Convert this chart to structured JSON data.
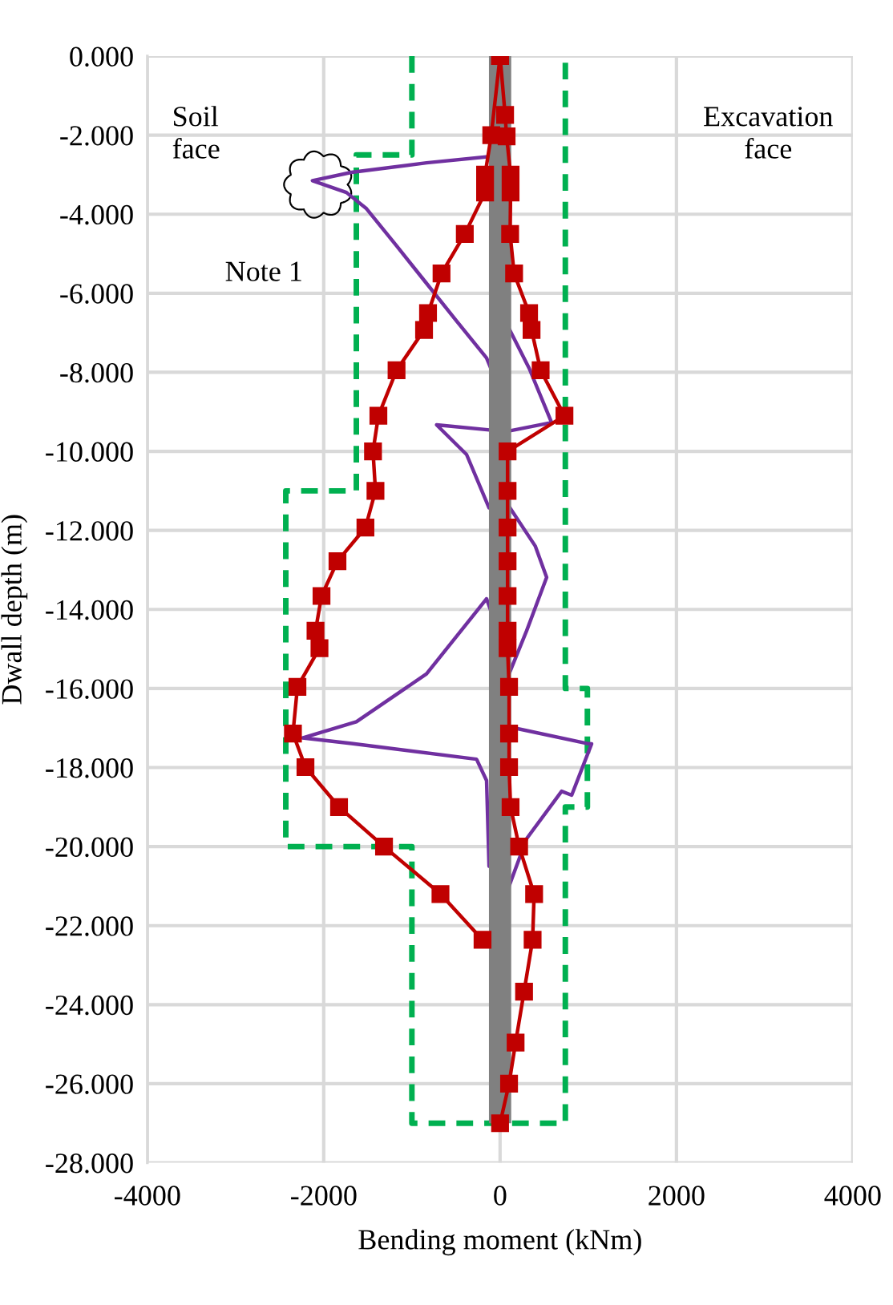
{
  "chart_data": {
    "type": "line",
    "xlabel": "Bending moment (kNm)",
    "ylabel": "Dwall depth (m)",
    "xlim": [
      -4000,
      4000
    ],
    "xticks": [
      -4000,
      -2000,
      0,
      2000,
      4000
    ],
    "ylim": [
      -28,
      0
    ],
    "yticks": [
      {
        "value": 0,
        "label": "0.000"
      },
      {
        "value": -2,
        "label": "-2.000"
      },
      {
        "value": -4,
        "label": "-4.000"
      },
      {
        "value": -6,
        "label": "-6.000"
      },
      {
        "value": -8,
        "label": "-8.000"
      },
      {
        "value": -10,
        "label": "-10.000"
      },
      {
        "value": -12,
        "label": "-12.000"
      },
      {
        "value": -14,
        "label": "-14.000"
      },
      {
        "value": -16,
        "label": "-16.000"
      },
      {
        "value": -18,
        "label": "-18.000"
      },
      {
        "value": -20,
        "label": "-20.000"
      },
      {
        "value": -22,
        "label": "-22.000"
      },
      {
        "value": -24,
        "label": "-24.000"
      },
      {
        "value": -26,
        "label": "-26.000"
      },
      {
        "value": -28,
        "label": "-28.000"
      }
    ],
    "grid": true,
    "legend": false,
    "annotations": [
      "Soil face",
      "Excavation face",
      "Note 1"
    ],
    "series": [
      {
        "color": "#00b050",
        "line_style": "dashed",
        "marker": "none",
        "x": [
          -1000,
          -1000,
          -1630,
          -1630,
          -2430,
          -2430,
          -1000,
          -1000,
          740,
          740,
          990,
          990,
          740,
          740
        ],
        "values": [
          0,
          -2.5,
          -2.5,
          -11,
          -11,
          -20,
          -20,
          -27,
          -27,
          -19,
          -19,
          -16,
          -16,
          0
        ]
      },
      {
        "color": "#7030a0",
        "line_style": "solid",
        "marker": "none",
        "x": [
          102,
          74,
          -68,
          -834,
          -1685,
          -2128,
          -1742,
          -1515,
          -1174,
          -834,
          -494,
          -153,
          -68,
          0,
          57,
          330,
          584,
          68,
          -720,
          -380,
          -125,
          0,
          74,
          400,
          528,
          301,
          102,
          0,
          -153,
          -834,
          -1629,
          -2241,
          -1685,
          -267,
          -153,
          -125,
          0,
          102,
          982,
          1038,
          812,
          698,
          301,
          102,
          46
        ],
        "values": [
          -1.76,
          -2.1,
          -2.53,
          -2.7,
          -2.94,
          -3.15,
          -3.45,
          -3.86,
          -4.8,
          -5.75,
          -6.7,
          -7.64,
          -8.1,
          -7.4,
          -6.7,
          -7.9,
          -9.27,
          -9.5,
          -9.33,
          -10.08,
          -11.43,
          -11.35,
          -11.3,
          -12.4,
          -13.19,
          -14.54,
          -15.63,
          -14.7,
          -13.73,
          -15.63,
          -16.84,
          -17.25,
          -17.39,
          -17.79,
          -18.33,
          -20.5,
          -18.8,
          -16.97,
          -17.39,
          -17.4,
          -18.7,
          -18.6,
          -19.8,
          -21.0,
          -22.67
        ]
      },
      {
        "color": "#808080",
        "line_style": "solid",
        "marker": "none",
        "x": [
          0,
          0
        ],
        "values": [
          0,
          -27
        ]
      },
      {
        "color": "#c00000",
        "line_style": "solid",
        "marker": "square",
        "x": [
          0,
          -100,
          -170,
          -170,
          -400,
          -664,
          -817,
          -862,
          -1174,
          -1380,
          -1441,
          -1413,
          -1527,
          -1844,
          -2025,
          -2093,
          -2048,
          -2298,
          -2349,
          -2207,
          -1826,
          -1316,
          -676,
          -199
        ],
        "values": [
          0,
          -2,
          -3,
          -3.45,
          -4.5,
          -5.5,
          -6.5,
          -6.93,
          -7.95,
          -9.1,
          -10,
          -11,
          -11.93,
          -12.78,
          -13.66,
          -14.54,
          -14.98,
          -15.96,
          -17.14,
          -17.99,
          -19,
          -20,
          -21.2,
          -22.36
        ]
      },
      {
        "color": "#c00000",
        "line_style": "solid",
        "marker": "square",
        "x": [
          0,
          57,
          74,
          119,
          119,
          114,
          159,
          329,
          357,
          460,
          730,
          85,
          85,
          85,
          85,
          85,
          85,
          85,
          102,
          102,
          102,
          119,
          216,
          386,
          369,
          272,
          176,
          102,
          0
        ],
        "values": [
          0,
          -1.49,
          -2.03,
          -3,
          -3.45,
          -4.5,
          -5.5,
          -6.5,
          -6.93,
          -7.95,
          -9.1,
          -10,
          -11,
          -11.93,
          -12.78,
          -13.66,
          -14.54,
          -14.98,
          -15.96,
          -17.14,
          -17.99,
          -19,
          -20,
          -21.2,
          -22.36,
          -23.67,
          -24.96,
          -26,
          -27
        ]
      }
    ]
  }
}
